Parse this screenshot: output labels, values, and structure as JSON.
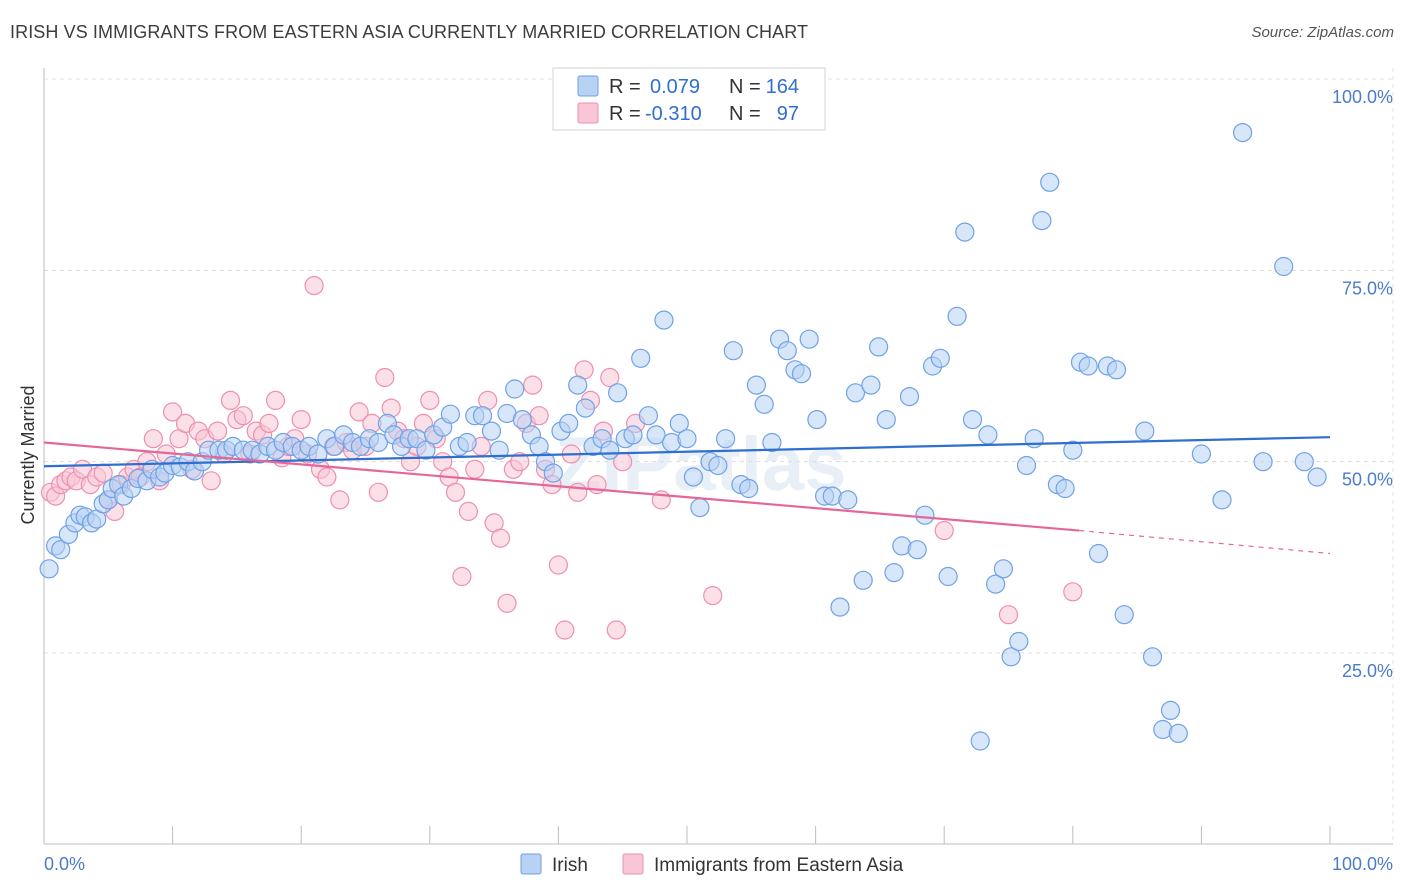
{
  "title": "IRISH VS IMMIGRANTS FROM EASTERN ASIA CURRENTLY MARRIED CORRELATION CHART",
  "source": "Source: ZipAtlas.com",
  "watermark": "ZIPatlas",
  "colors": {
    "irish": "#6fa2e6",
    "irish_fill": "#b8d2f4",
    "irish_line": "#2f6fd0",
    "eastern_asia": "#ee8fb0",
    "eastern_asia_fill": "#f8c6d6",
    "eastern_asia_line": "#e5679a",
    "tick_blue": "#4a7cc9"
  },
  "stats_box": {
    "rows": [
      {
        "r_label": "R =",
        "r_value": "0.079",
        "n_label": "N =",
        "n_value": "164"
      },
      {
        "r_label": "R =",
        "r_value": "-0.310",
        "n_label": "N =",
        "n_value": "97"
      }
    ]
  },
  "chart_data": {
    "type": "scatter",
    "title": "IRISH VS IMMIGRANTS FROM EASTERN ASIA CURRENTLY MARRIED CORRELATION CHART",
    "xlabel": "",
    "ylabel": "Currently Married",
    "xlim": [
      0,
      100
    ],
    "ylim": [
      5,
      105
    ],
    "x_tick_labels": [
      "0.0%",
      "100.0%"
    ],
    "y_ticks": [
      25,
      50,
      75,
      100
    ],
    "y_tick_labels": [
      "25.0%",
      "50.0%",
      "75.0%",
      "100.0%"
    ],
    "grid": true,
    "legend_position": "bottom-center",
    "series": [
      {
        "name": "Irish",
        "r": 0.079,
        "n": 164,
        "trend": {
          "x0": 0,
          "y0": 49.4,
          "x1": 100,
          "y1": 53.2
        },
        "points": [
          [
            0.4,
            36
          ],
          [
            0.9,
            39
          ],
          [
            1.3,
            38.5
          ],
          [
            1.9,
            40.5
          ],
          [
            2.4,
            42
          ],
          [
            2.8,
            43
          ],
          [
            3.2,
            42.8
          ],
          [
            3.7,
            42
          ],
          [
            4.1,
            42.5
          ],
          [
            4.6,
            44.5
          ],
          [
            5.0,
            45
          ],
          [
            5.3,
            46.5
          ],
          [
            5.8,
            47
          ],
          [
            6.2,
            45.5
          ],
          [
            6.8,
            46.5
          ],
          [
            7.3,
            47.8
          ],
          [
            8.0,
            47.5
          ],
          [
            8.4,
            49
          ],
          [
            9.0,
            48
          ],
          [
            9.4,
            48.5
          ],
          [
            10.0,
            49.5
          ],
          [
            10.6,
            49.3
          ],
          [
            11.2,
            50
          ],
          [
            11.7,
            48.8
          ],
          [
            12.3,
            50
          ],
          [
            12.8,
            51.5
          ],
          [
            13.6,
            51.5
          ],
          [
            14.2,
            51.5
          ],
          [
            14.7,
            52
          ],
          [
            15.5,
            51.5
          ],
          [
            16.2,
            51.5
          ],
          [
            16.8,
            51
          ],
          [
            17.4,
            52
          ],
          [
            18.0,
            51.5
          ],
          [
            18.6,
            52.5
          ],
          [
            19.3,
            52
          ],
          [
            20.0,
            51.5
          ],
          [
            20.6,
            52
          ],
          [
            21.3,
            51
          ],
          [
            22.0,
            53
          ],
          [
            22.6,
            52
          ],
          [
            23.3,
            53.5
          ],
          [
            24.0,
            52.5
          ],
          [
            24.6,
            52
          ],
          [
            25.3,
            53
          ],
          [
            26.0,
            52.5
          ],
          [
            26.7,
            55
          ],
          [
            27.2,
            53.5
          ],
          [
            27.8,
            52
          ],
          [
            28.4,
            53
          ],
          [
            29.0,
            53
          ],
          [
            29.7,
            51.5
          ],
          [
            30.3,
            53.5
          ],
          [
            31.0,
            54.5
          ],
          [
            31.6,
            56.2
          ],
          [
            32.3,
            52
          ],
          [
            32.9,
            52.5
          ],
          [
            33.5,
            56
          ],
          [
            34.1,
            56
          ],
          [
            34.8,
            54
          ],
          [
            35.4,
            51.5
          ],
          [
            36.0,
            56.3
          ],
          [
            36.6,
            59.5
          ],
          [
            37.2,
            55.5
          ],
          [
            37.9,
            53.5
          ],
          [
            38.5,
            52
          ],
          [
            39.0,
            50
          ],
          [
            39.6,
            48.5
          ],
          [
            40.2,
            54
          ],
          [
            40.8,
            55
          ],
          [
            41.5,
            60
          ],
          [
            42.1,
            57
          ],
          [
            42.7,
            52
          ],
          [
            43.4,
            53
          ],
          [
            44.0,
            51.5
          ],
          [
            44.6,
            59
          ],
          [
            45.2,
            53
          ],
          [
            45.8,
            53.5
          ],
          [
            46.4,
            63.5
          ],
          [
            47.0,
            56
          ],
          [
            47.6,
            53.5
          ],
          [
            48.2,
            68.5
          ],
          [
            48.8,
            52.5
          ],
          [
            49.4,
            55
          ],
          [
            50.0,
            53
          ],
          [
            50.5,
            48
          ],
          [
            51.0,
            44
          ],
          [
            51.8,
            50
          ],
          [
            52.4,
            49.5
          ],
          [
            53.0,
            53
          ],
          [
            53.6,
            64.5
          ],
          [
            54.2,
            47
          ],
          [
            54.8,
            46.5
          ],
          [
            55.4,
            60
          ],
          [
            56.0,
            57.5
          ],
          [
            56.6,
            52.5
          ],
          [
            57.2,
            66
          ],
          [
            57.8,
            64.5
          ],
          [
            58.4,
            62
          ],
          [
            58.9,
            61.5
          ],
          [
            59.5,
            66
          ],
          [
            60.1,
            55.5
          ],
          [
            60.7,
            45.5
          ],
          [
            61.3,
            45.5
          ],
          [
            61.9,
            31
          ],
          [
            62.5,
            45
          ],
          [
            63.1,
            59
          ],
          [
            63.7,
            34.5
          ],
          [
            64.3,
            60
          ],
          [
            64.9,
            65
          ],
          [
            65.5,
            55.5
          ],
          [
            66.1,
            35.5
          ],
          [
            66.7,
            39
          ],
          [
            67.3,
            58.5
          ],
          [
            67.9,
            38.5
          ],
          [
            68.5,
            43
          ],
          [
            69.1,
            62.5
          ],
          [
            69.7,
            63.5
          ],
          [
            70.3,
            35
          ],
          [
            71.0,
            69
          ],
          [
            71.6,
            80
          ],
          [
            72.2,
            55.5
          ],
          [
            72.8,
            13.5
          ],
          [
            73.4,
            53.5
          ],
          [
            74.0,
            34
          ],
          [
            74.6,
            36
          ],
          [
            75.2,
            24.5
          ],
          [
            75.8,
            26.5
          ],
          [
            76.4,
            49.5
          ],
          [
            77.0,
            53
          ],
          [
            77.6,
            81.5
          ],
          [
            78.2,
            86.5
          ],
          [
            78.8,
            47
          ],
          [
            79.4,
            46.5
          ],
          [
            80.0,
            51.5
          ],
          [
            80.6,
            63
          ],
          [
            81.2,
            62.5
          ],
          [
            82.0,
            38
          ],
          [
            82.7,
            62.5
          ],
          [
            83.4,
            62
          ],
          [
            84.0,
            30
          ],
          [
            85.6,
            54
          ],
          [
            86.2,
            24.5
          ],
          [
            87.0,
            15
          ],
          [
            87.6,
            17.5
          ],
          [
            88.2,
            14.5
          ],
          [
            90.0,
            51
          ],
          [
            91.6,
            45
          ],
          [
            93.2,
            93
          ],
          [
            94.8,
            50
          ],
          [
            96.4,
            75.5
          ],
          [
            98.0,
            50
          ],
          [
            99.0,
            48
          ]
        ]
      },
      {
        "name": "Immigrants from Eastern Asia",
        "r": -0.31,
        "n": 97,
        "trend": {
          "x0": 0,
          "y0": 52.5,
          "x1": 80.5,
          "y1": 41,
          "dash_x1": 100,
          "dash_y1": 38
        },
        "points": [
          [
            0.5,
            46
          ],
          [
            0.9,
            45.5
          ],
          [
            1.3,
            47
          ],
          [
            1.7,
            47.5
          ],
          [
            2.1,
            48
          ],
          [
            2.5,
            47.5
          ],
          [
            3.0,
            49
          ],
          [
            3.6,
            47
          ],
          [
            4.1,
            48
          ],
          [
            4.6,
            48.5
          ],
          [
            5.0,
            45
          ],
          [
            5.5,
            43.5
          ],
          [
            6.0,
            47
          ],
          [
            6.5,
            48
          ],
          [
            7.0,
            49
          ],
          [
            7.5,
            48
          ],
          [
            8.0,
            50
          ],
          [
            8.5,
            53
          ],
          [
            9.0,
            47.5
          ],
          [
            9.5,
            51
          ],
          [
            10.0,
            56.5
          ],
          [
            10.5,
            53
          ],
          [
            11.0,
            55
          ],
          [
            11.5,
            49
          ],
          [
            12.0,
            54
          ],
          [
            12.5,
            53
          ],
          [
            13.0,
            47.5
          ],
          [
            13.5,
            54
          ],
          [
            14.0,
            51
          ],
          [
            14.5,
            58
          ],
          [
            15.0,
            55.5
          ],
          [
            15.5,
            56
          ],
          [
            16.0,
            51
          ],
          [
            16.5,
            54
          ],
          [
            17.0,
            53.5
          ],
          [
            17.5,
            55
          ],
          [
            18.0,
            58
          ],
          [
            18.5,
            50.5
          ],
          [
            19.0,
            52
          ],
          [
            19.5,
            53
          ],
          [
            20.0,
            55.5
          ],
          [
            20.5,
            51
          ],
          [
            21.0,
            73
          ],
          [
            21.5,
            49
          ],
          [
            22.0,
            48
          ],
          [
            22.5,
            52
          ],
          [
            23.0,
            45
          ],
          [
            23.5,
            52.5
          ],
          [
            24.0,
            51.5
          ],
          [
            24.5,
            56.5
          ],
          [
            25.0,
            52
          ],
          [
            25.5,
            55
          ],
          [
            26.0,
            46
          ],
          [
            26.5,
            61
          ],
          [
            27.0,
            57
          ],
          [
            27.5,
            54
          ],
          [
            28.0,
            53
          ],
          [
            28.5,
            50
          ],
          [
            29.0,
            52
          ],
          [
            29.5,
            55
          ],
          [
            30.0,
            58
          ],
          [
            30.5,
            53
          ],
          [
            31.0,
            50
          ],
          [
            31.5,
            48
          ],
          [
            32.0,
            46
          ],
          [
            32.5,
            35
          ],
          [
            33.0,
            43.5
          ],
          [
            33.5,
            49
          ],
          [
            34.0,
            52
          ],
          [
            34.5,
            58
          ],
          [
            35.0,
            42
          ],
          [
            35.5,
            40
          ],
          [
            36.0,
            31.5
          ],
          [
            36.5,
            49
          ],
          [
            37.0,
            50
          ],
          [
            37.5,
            55
          ],
          [
            38.0,
            60
          ],
          [
            38.5,
            56
          ],
          [
            39.0,
            49
          ],
          [
            39.5,
            47
          ],
          [
            40.0,
            36.5
          ],
          [
            40.5,
            28
          ],
          [
            41.0,
            51
          ],
          [
            41.5,
            46
          ],
          [
            42.0,
            62
          ],
          [
            42.5,
            58
          ],
          [
            43.0,
            47
          ],
          [
            43.5,
            54
          ],
          [
            44.0,
            61
          ],
          [
            44.5,
            28
          ],
          [
            45.0,
            50
          ],
          [
            46.0,
            55
          ],
          [
            48.0,
            45
          ],
          [
            52.0,
            32.5
          ],
          [
            70.0,
            41
          ],
          [
            75.0,
            30
          ],
          [
            80.0,
            33
          ]
        ]
      }
    ]
  },
  "legend": {
    "items": [
      {
        "label": "Irish"
      },
      {
        "label": "Immigrants from Eastern Asia"
      }
    ]
  }
}
